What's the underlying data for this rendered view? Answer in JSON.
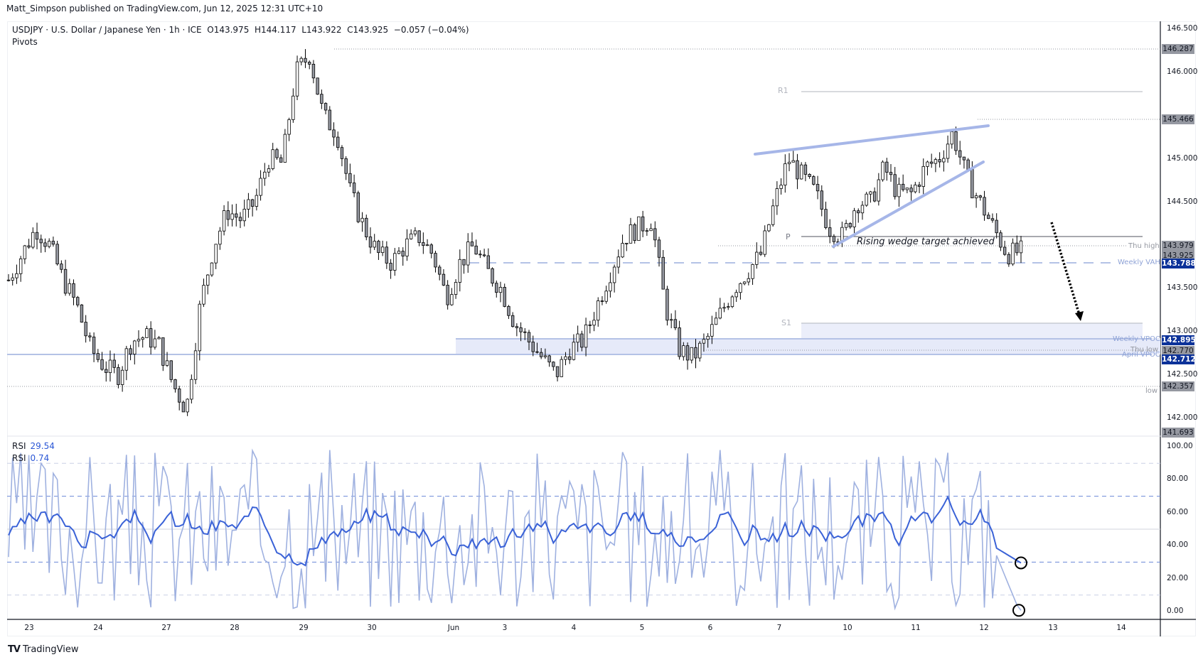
{
  "header": {
    "published": "Matt_Simpson published on TradingView.com, Jun 12, 2025 12:31 UTC+10",
    "symbol_line": "USDJPY · U.S. Dollar / Japanese Yen · 1h · ICE  O143.975  H144.117  L143.922  C143.925  −0.057 (−0.04%)",
    "indicator": "Pivots"
  },
  "rsi_legend": [
    {
      "label": "RSI",
      "value": "29.54"
    },
    {
      "label": "RSI",
      "value": "0.74"
    }
  ],
  "annotation": "Rising wedge target achieved",
  "pivots": {
    "r1": "R1",
    "p": "P",
    "s1": "S1"
  },
  "levels": {
    "thu_high": "Thu high",
    "weekly_vah": "Weekly VAH",
    "weekly_vpoc": "Weekly VPOC",
    "thu_low": "Thu low",
    "april_vpoc": "April VPOC",
    "low": "low"
  },
  "price_axis": {
    "ticks": [
      "146.500",
      "146.000",
      "145.000",
      "144.500",
      "143.500",
      "143.000",
      "142.500",
      "142.000"
    ],
    "badges": [
      {
        "value": "146.287",
        "style": "gray"
      },
      {
        "value": "145.466",
        "style": "gray"
      },
      {
        "value": "143.979",
        "style": "gray"
      },
      {
        "value": "143.925",
        "style": "gray"
      },
      {
        "value": "143.788",
        "style": "blue"
      },
      {
        "value": "142.895",
        "style": "blue"
      },
      {
        "value": "142.770",
        "style": "gray"
      },
      {
        "value": "142.712",
        "style": "blue"
      },
      {
        "value": "142.357",
        "style": "gray"
      },
      {
        "value": "141.693",
        "style": "gray"
      }
    ]
  },
  "rsi_axis": {
    "ticks": [
      "100.00",
      "80.00",
      "60.00",
      "40.00",
      "20.00",
      "0.00"
    ]
  },
  "time_axis": {
    "labels": [
      "23",
      "24",
      "27",
      "28",
      "29",
      "30",
      "Jun",
      "3",
      "4",
      "5",
      "6",
      "7",
      "10",
      "11",
      "12",
      "13",
      "14"
    ]
  },
  "footer": {
    "brand": "TradingView"
  },
  "colors": {
    "candle_up": "#ffffff",
    "candle_down": "#9598a1",
    "candle_border": "#000000",
    "rsi_main": "#3a62d7",
    "rsi_fast": "#9fb1e0",
    "zone_fill": "#e6eaf9",
    "zone_line": "#b4c2e6",
    "badge_blue": "#0c3299",
    "badge_gray": "#9598a1"
  },
  "chart_data": {
    "type": "candlestick",
    "title": "USDJPY · U.S. Dollar / Japanese Yen · 1h · ICE",
    "ohlc_last": {
      "open": 143.975,
      "high": 144.117,
      "low": 143.922,
      "close": 143.925,
      "change": -0.057,
      "change_pct": -0.04
    },
    "x_labels": [
      "23",
      "24",
      "27",
      "28",
      "29",
      "30",
      "Jun",
      "3",
      "4",
      "5",
      "6",
      "7",
      "10",
      "11",
      "12",
      "13",
      "14"
    ],
    "ylim": [
      141.693,
      146.6
    ],
    "key_levels": {
      "swing_high": 146.287,
      "r1": 145.82,
      "wedge_high": 145.466,
      "p": 143.979,
      "thu_high": 143.925,
      "weekly_vah": 143.788,
      "s1": 143.06,
      "weekly_vpoc": 142.895,
      "thu_low": 142.77,
      "april_vpoc": 142.712,
      "low": 142.357,
      "axis_min": 141.693
    },
    "close_path": [
      143.6,
      143.9,
      144.2,
      144.0,
      143.6,
      143.3,
      142.8,
      142.6,
      142.5,
      142.9,
      142.95,
      142.85,
      142.4,
      142.1,
      143.3,
      144.0,
      144.4,
      144.3,
      144.5,
      145.0,
      144.95,
      146.0,
      146.2,
      145.5,
      145.3,
      144.6,
      144.2,
      143.9,
      143.8,
      144.0,
      144.1,
      143.9,
      143.4,
      143.8,
      144.0,
      143.7,
      143.5,
      143.1,
      142.9,
      142.7,
      142.5,
      142.8,
      142.9,
      143.3,
      143.7,
      144.1,
      144.2,
      144.3,
      143.3,
      142.8,
      142.7,
      142.9,
      143.2,
      143.5,
      143.7,
      143.9,
      144.5,
      145.0,
      144.8,
      144.6,
      144.2,
      144.1,
      144.5,
      144.5,
      144.9,
      144.6,
      144.6,
      144.9,
      145.0,
      145.3,
      144.8,
      144.5,
      144.2,
      143.9,
      143.93
    ],
    "rsi": {
      "series": [
        {
          "name": "RSI (main)",
          "last": 29.54,
          "overbought": 70,
          "oversold": 30
        },
        {
          "name": "RSI (fast)",
          "last": 0.74,
          "overbought": 90,
          "oversold": 10
        }
      ],
      "ylim": [
        0,
        100
      ]
    }
  }
}
